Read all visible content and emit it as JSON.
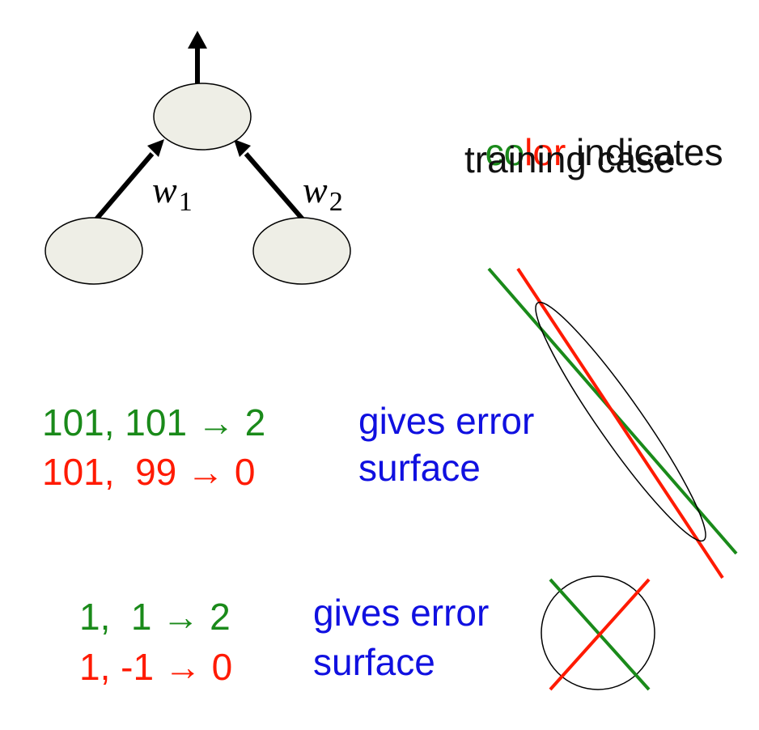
{
  "legend": {
    "line1_word": "color",
    "line1_word_first_part": "co",
    "line1_word_second_part": "lor",
    "line1_rest": " indicates",
    "line2": "training case"
  },
  "network": {
    "weight1_symbol": "w",
    "weight1_subscript": "1",
    "weight2_symbol": "w",
    "weight2_subscript": "2"
  },
  "example1": {
    "case_a": "101, 101 → 2",
    "case_b": "101,  99 → 0",
    "caption_line1": "gives error",
    "caption_line2": "surface"
  },
  "example2": {
    "case_a": "1,  1 → 2",
    "case_b": "1, -1 → 0",
    "caption_line1": "gives error",
    "caption_line2": "surface"
  },
  "colors": {
    "case_green": "#1a8a1a",
    "case_red": "#ff1a00",
    "caption_blue": "#1010e0",
    "node_fill": "#eeeee6"
  }
}
